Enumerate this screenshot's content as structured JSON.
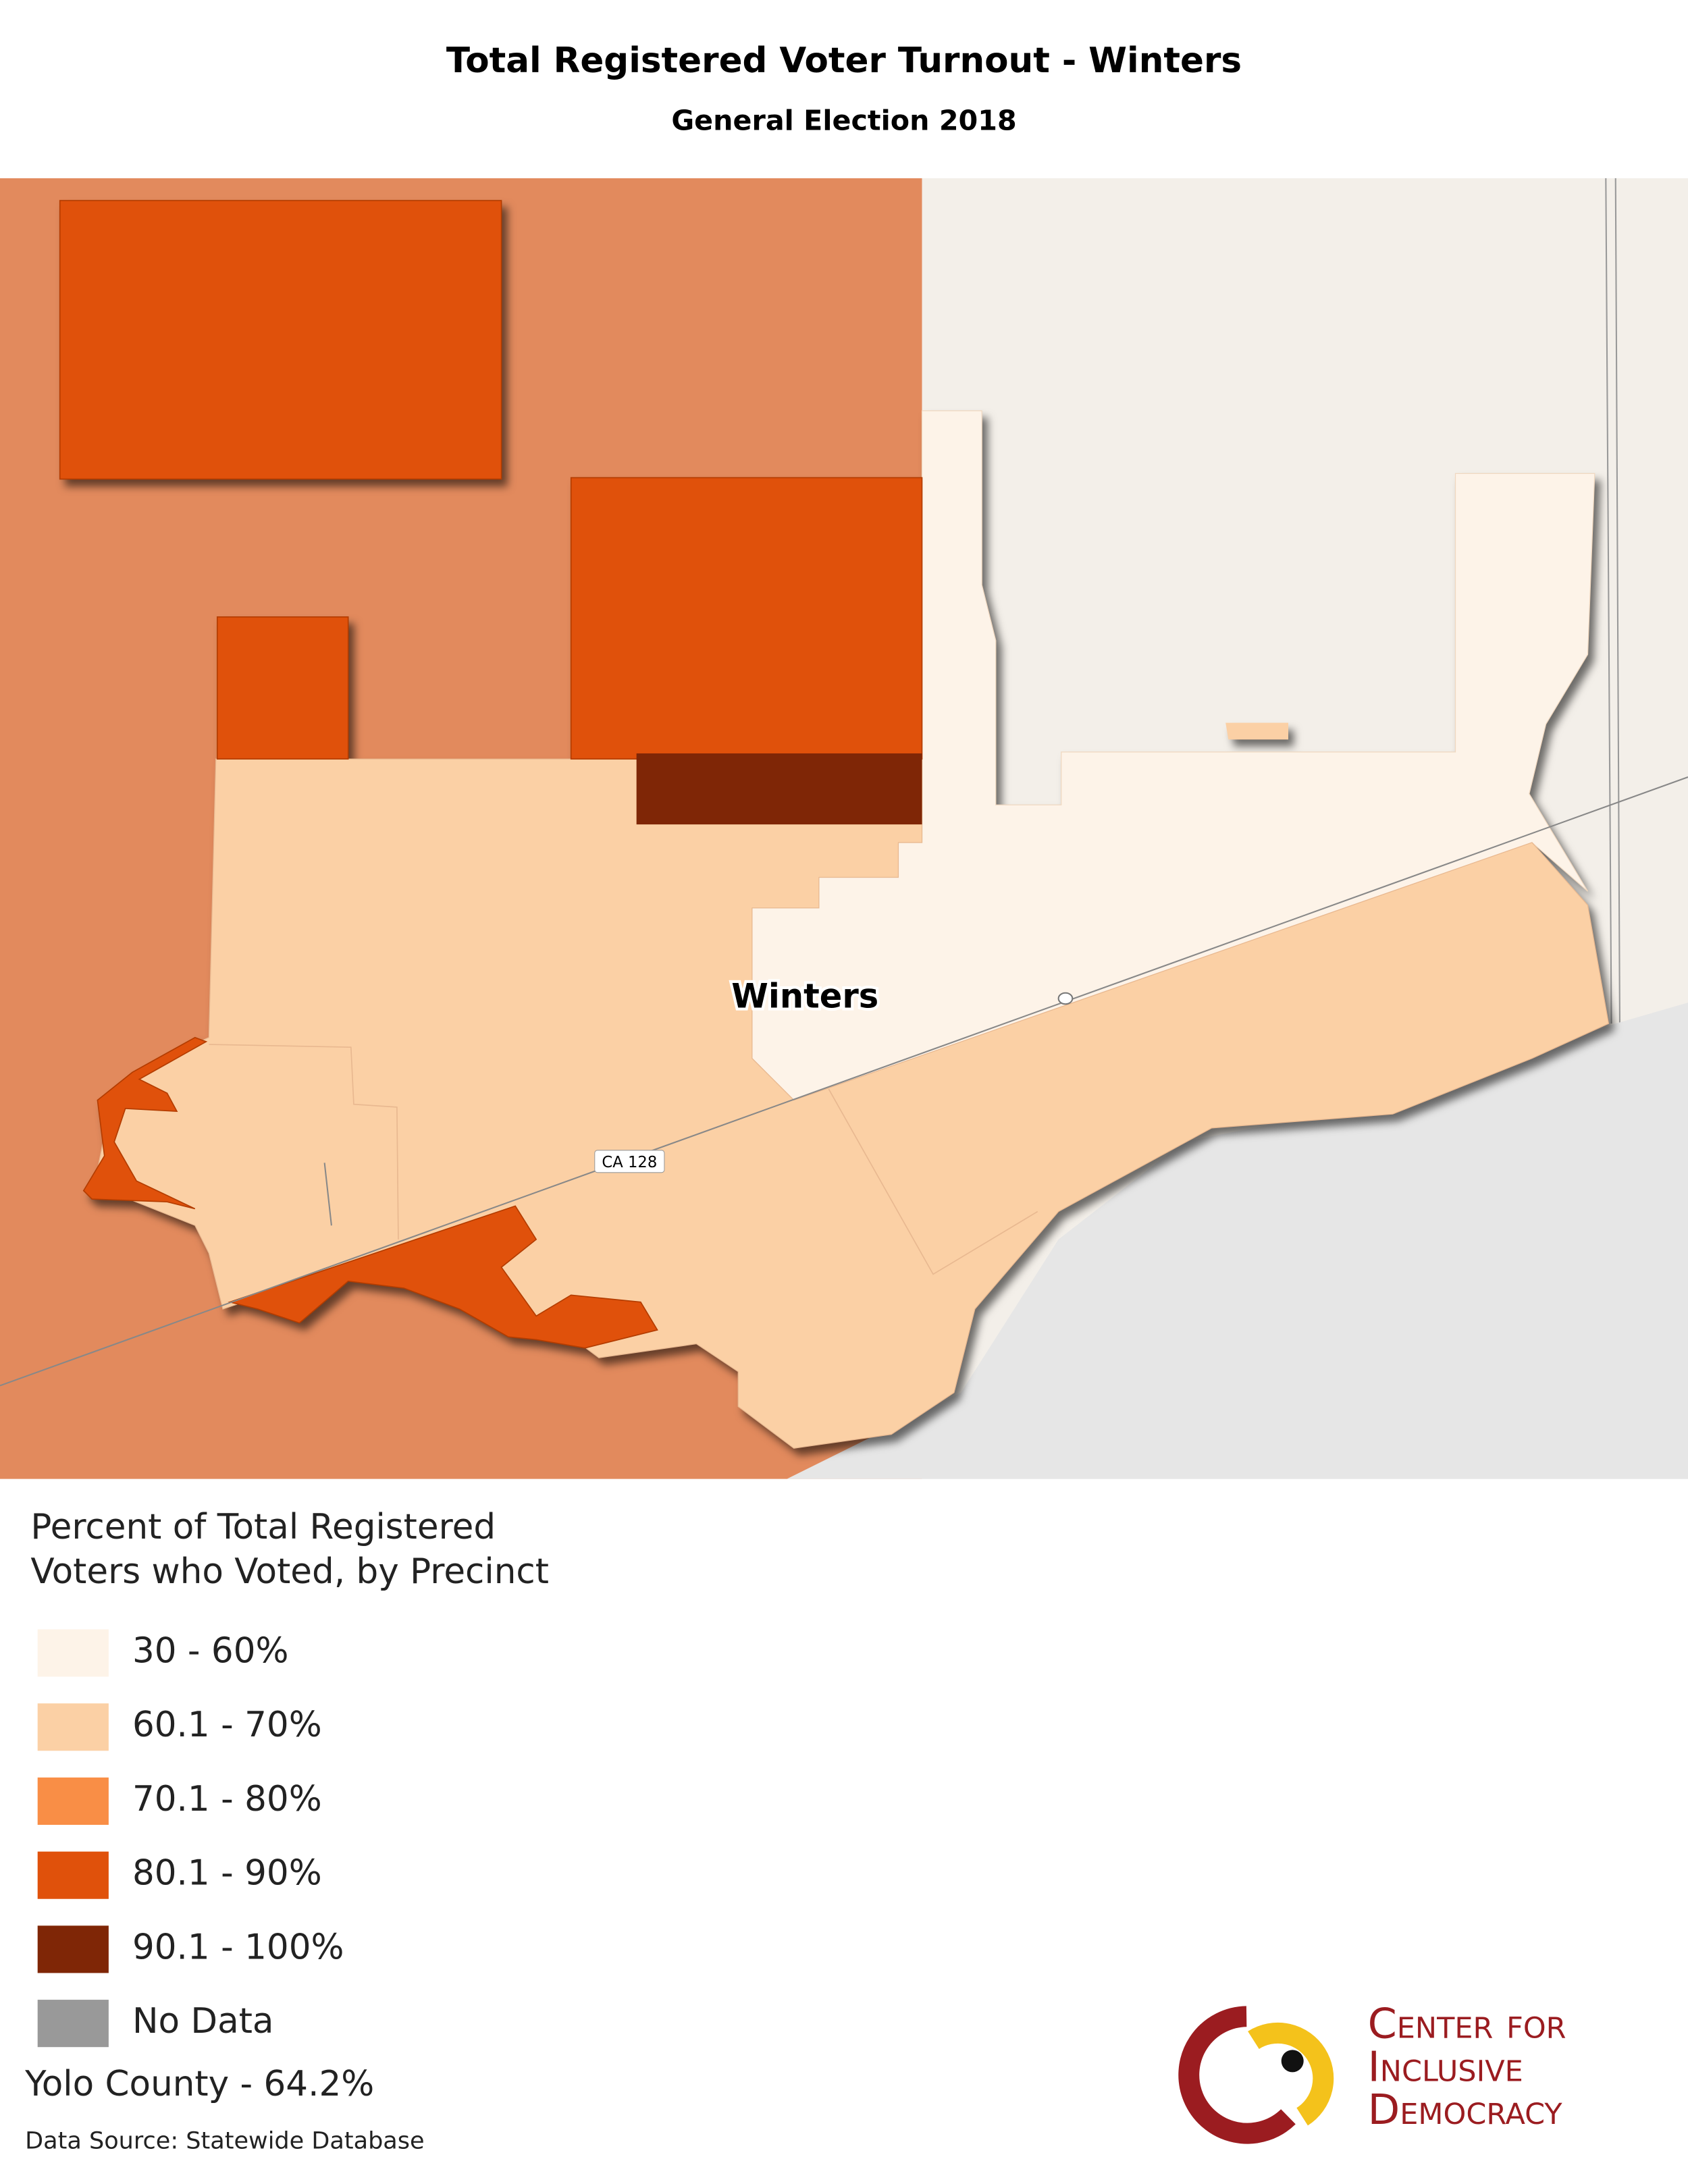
{
  "title": "Total Registered Voter Turnout - Winters",
  "subtitle": "General Election 2018",
  "map": {
    "place_label": "Winters",
    "road_label": "CA 128"
  },
  "legend": {
    "title_lines": [
      "Percent of Total Registered",
      "Voters who Voted, by Precinct"
    ],
    "items": [
      {
        "label": "30 - 60%",
        "color": "#fdf3e8"
      },
      {
        "label": "60.1 - 70%",
        "color": "#fbd0a5"
      },
      {
        "label": "70.1 - 80%",
        "color": "#f98e46"
      },
      {
        "label": "80.1 - 90%",
        "color": "#e0510b"
      },
      {
        "label": "90.1 - 100%",
        "color": "#7f2606"
      },
      {
        "label": "No Data",
        "color": "#999999"
      }
    ]
  },
  "county_note": "Yolo County - 64.2%",
  "source": "Data Source: Statewide Database",
  "logo": {
    "lines": [
      "Center for",
      "Inclusive",
      "Democracy"
    ]
  }
}
